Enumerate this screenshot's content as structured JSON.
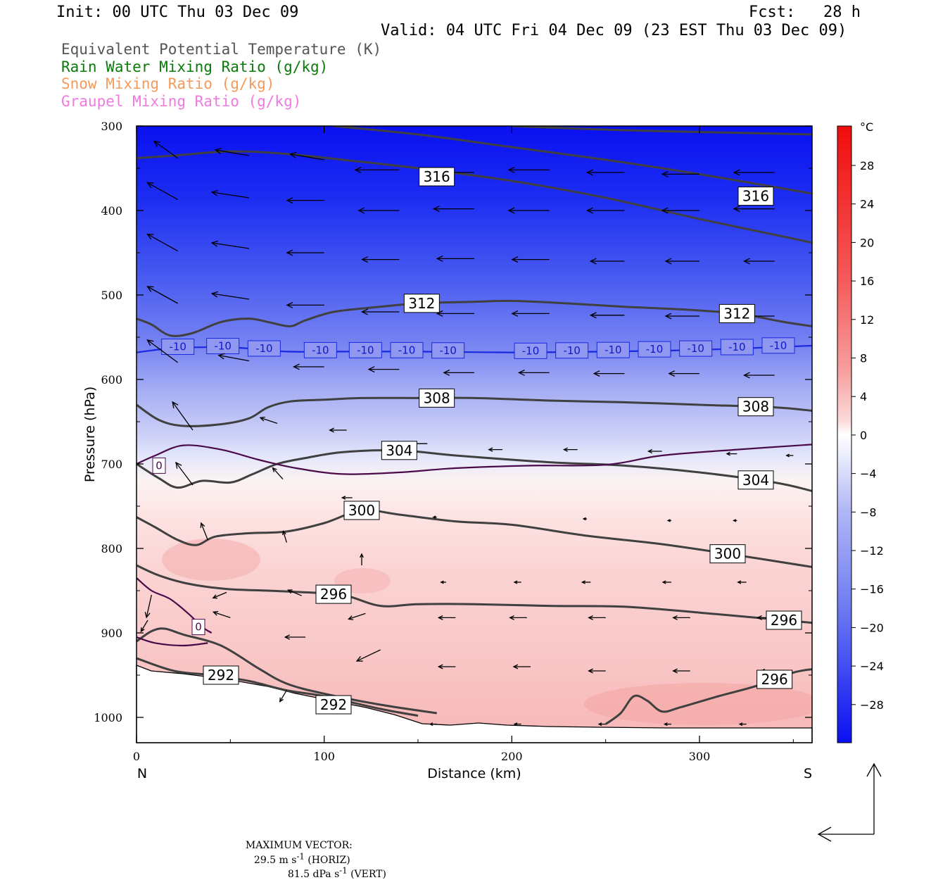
{
  "header": {
    "init": "Init: 00 UTC Thu 03 Dec 09",
    "fcst": "Fcst:   28 h",
    "valid": "Valid: 04 UTC Fri 04 Dec 09 (23 EST Thu 03 Dec 09)"
  },
  "legend": {
    "items": [
      {
        "label": "Equivalent Potential Temperature (K)",
        "color": "#555555"
      },
      {
        "label": "Rain Water Mixing Ratio (g/kg)",
        "color": "#0a7a0a"
      },
      {
        "label": "Snow Mixing Ratio (g/kg)",
        "color": "#f39a5c"
      },
      {
        "label": "Graupel Mixing Ratio (g/kg)",
        "color": "#f07ae0"
      }
    ]
  },
  "footer": {
    "max_vector_label": "MAXIMUM VECTOR:",
    "horiz_value": "29.5 m s",
    "horiz_exp": "-1",
    "horiz_tag": "(HORIZ)",
    "vert_value": "81.5 dPa s",
    "vert_exp": "-1",
    "vert_tag": "(VERT)"
  },
  "chart_data": {
    "type": "heatmap",
    "description_fields": [
      "temperature shading (°C)",
      "theta-e contours (K)",
      "isotherms 0 and -10 °C",
      "circulation vectors"
    ],
    "xlabel": "Distance (km)",
    "ylabel": "Pressure (hPa)",
    "x_range": [
      0,
      360
    ],
    "y_range": [
      1030,
      300
    ],
    "x_ticks": [
      0,
      100,
      200,
      300
    ],
    "y_ticks": [
      300,
      400,
      500,
      600,
      700,
      800,
      900,
      1000
    ],
    "x_end_labels": {
      "left": "N",
      "right": "S"
    },
    "colorbar": {
      "unit": "°C",
      "ticks": [
        "28",
        "24",
        "20",
        "16",
        "12",
        "8",
        "4",
        "0",
        "−4",
        "−8",
        "−12",
        "−16",
        "−20",
        "−24",
        "−28"
      ]
    },
    "theta_e_contours": [
      {
        "label": "316",
        "points": [
          [
            0,
            338
          ],
          [
            20,
            335
          ],
          [
            50,
            330
          ],
          [
            80,
            333
          ],
          [
            110,
            340
          ],
          [
            150,
            350
          ],
          [
            200,
            365
          ],
          [
            250,
            385
          ],
          [
            300,
            410
          ],
          [
            360,
            438
          ]
        ]
      },
      {
        "label": "316",
        "points": [
          [
            105,
            300
          ],
          [
            150,
            310
          ],
          [
            200,
            325
          ],
          [
            250,
            340
          ],
          [
            300,
            357
          ],
          [
            360,
            380
          ]
        ]
      },
      {
        "label": "316",
        "points": [
          [
            200,
            300
          ],
          [
            260,
            305
          ],
          [
            320,
            308
          ],
          [
            360,
            310
          ]
        ]
      },
      {
        "label": "312",
        "points": [
          [
            0,
            528
          ],
          [
            8,
            535
          ],
          [
            18,
            548
          ],
          [
            30,
            545
          ],
          [
            45,
            532
          ],
          [
            60,
            528
          ],
          [
            72,
            533
          ],
          [
            82,
            537
          ],
          [
            90,
            530
          ],
          [
            105,
            520
          ],
          [
            125,
            515
          ],
          [
            150,
            510
          ],
          [
            180,
            508
          ],
          [
            200,
            507
          ],
          [
            230,
            510
          ],
          [
            260,
            514
          ],
          [
            290,
            517
          ],
          [
            320,
            522
          ],
          [
            345,
            532
          ],
          [
            360,
            537
          ]
        ]
      },
      {
        "label": "308",
        "points": [
          [
            0,
            630
          ],
          [
            12,
            648
          ],
          [
            25,
            655
          ],
          [
            45,
            653
          ],
          [
            60,
            646
          ],
          [
            70,
            633
          ],
          [
            82,
            626
          ],
          [
            100,
            624
          ],
          [
            120,
            622
          ],
          [
            150,
            622
          ],
          [
            180,
            622
          ],
          [
            220,
            625
          ],
          [
            260,
            627
          ],
          [
            300,
            630
          ],
          [
            340,
            633
          ],
          [
            360,
            637
          ]
        ]
      },
      {
        "label": "304",
        "points": [
          [
            0,
            700
          ],
          [
            12,
            717
          ],
          [
            22,
            728
          ],
          [
            35,
            720
          ],
          [
            50,
            722
          ],
          [
            62,
            712
          ],
          [
            75,
            700
          ],
          [
            90,
            693
          ],
          [
            110,
            686
          ],
          [
            140,
            684
          ],
          [
            170,
            690
          ],
          [
            220,
            698
          ],
          [
            260,
            702
          ],
          [
            300,
            710
          ],
          [
            340,
            722
          ],
          [
            360,
            732
          ]
        ]
      },
      {
        "label": "300",
        "points": [
          [
            0,
            763
          ],
          [
            10,
            775
          ],
          [
            22,
            790
          ],
          [
            32,
            796
          ],
          [
            42,
            786
          ],
          [
            60,
            782
          ],
          [
            80,
            780
          ],
          [
            100,
            770
          ],
          [
            120,
            755
          ],
          [
            140,
            760
          ],
          [
            170,
            768
          ],
          [
            200,
            772
          ],
          [
            240,
            785
          ],
          [
            280,
            795
          ],
          [
            320,
            808
          ],
          [
            360,
            822
          ]
        ]
      },
      {
        "label": "296",
        "points": [
          [
            0,
            820
          ],
          [
            12,
            832
          ],
          [
            28,
            842
          ],
          [
            48,
            848
          ],
          [
            70,
            850
          ],
          [
            90,
            852
          ],
          [
            110,
            855
          ],
          [
            130,
            868
          ],
          [
            150,
            866
          ],
          [
            180,
            866
          ],
          [
            220,
            868
          ],
          [
            260,
            869
          ],
          [
            300,
            876
          ],
          [
            340,
            884
          ],
          [
            360,
            888
          ]
        ]
      },
      {
        "label": "296",
        "points": [
          [
            250,
            1008
          ],
          [
            258,
            995
          ],
          [
            265,
            975
          ],
          [
            272,
            980
          ],
          [
            280,
            993
          ],
          [
            290,
            988
          ],
          [
            310,
            975
          ],
          [
            330,
            963
          ],
          [
            350,
            947
          ],
          [
            360,
            943
          ]
        ]
      },
      {
        "label": "292",
        "points": [
          [
            0,
            910
          ],
          [
            8,
            898
          ],
          [
            15,
            895
          ],
          [
            25,
            902
          ],
          [
            45,
            915
          ],
          [
            65,
            942
          ],
          [
            80,
            960
          ],
          [
            100,
            972
          ],
          [
            130,
            985
          ],
          [
            160,
            995
          ]
        ]
      },
      {
        "label": "292",
        "points": [
          [
            0,
            930
          ],
          [
            20,
            945
          ],
          [
            40,
            950
          ],
          [
            60,
            957
          ],
          [
            80,
            968
          ],
          [
            100,
            975
          ],
          [
            130,
            990
          ],
          [
            150,
            998
          ]
        ]
      }
    ],
    "isotherm_minus10": {
      "label": "-10",
      "points": [
        [
          0,
          568
        ],
        [
          20,
          563
        ],
        [
          50,
          562
        ],
        [
          80,
          567
        ],
        [
          110,
          567
        ],
        [
          150,
          567
        ],
        [
          200,
          568
        ],
        [
          250,
          567
        ],
        [
          300,
          565
        ],
        [
          360,
          560
        ]
      ],
      "label_x_km": [
        22,
        46,
        68,
        98,
        122,
        144,
        166,
        210,
        232,
        254,
        276,
        298,
        320,
        342
      ]
    },
    "isotherm_zero": [
      {
        "label": "0",
        "points": [
          [
            0,
            700
          ],
          [
            10,
            690
          ],
          [
            25,
            678
          ],
          [
            45,
            683
          ],
          [
            65,
            695
          ],
          [
            85,
            705
          ],
          [
            110,
            712
          ],
          [
            140,
            710
          ],
          [
            170,
            705
          ],
          [
            210,
            702
          ],
          [
            250,
            701
          ],
          [
            280,
            690
          ],
          [
            320,
            683
          ],
          [
            360,
            677
          ]
        ],
        "label_at": [
          12,
          702
        ]
      },
      {
        "label": "0",
        "points": [
          [
            0,
            835
          ],
          [
            8,
            850
          ],
          [
            18,
            860
          ],
          [
            28,
            878
          ],
          [
            35,
            893
          ],
          [
            40,
            900
          ]
        ],
        "label_at": [
          33,
          893
        ]
      },
      {
        "label": "0",
        "points": [
          [
            0,
            905
          ],
          [
            10,
            912
          ],
          [
            25,
            915
          ],
          [
            38,
            912
          ]
        ]
      }
    ],
    "vectors": [
      [
        22,
        338,
        14,
        -3
      ],
      [
        60,
        335,
        20,
        -1
      ],
      [
        100,
        340,
        20,
        -1
      ],
      [
        140,
        352,
        26,
        0
      ],
      [
        180,
        355,
        24,
        0
      ],
      [
        220,
        352,
        24,
        0
      ],
      [
        260,
        355,
        22,
        0
      ],
      [
        300,
        357,
        22,
        0
      ],
      [
        340,
        355,
        24,
        0
      ],
      [
        22,
        387,
        18,
        -3
      ],
      [
        60,
        385,
        22,
        -1
      ],
      [
        100,
        388,
        22,
        0
      ],
      [
        140,
        400,
        24,
        0
      ],
      [
        180,
        398,
        24,
        0
      ],
      [
        220,
        400,
        24,
        0
      ],
      [
        260,
        400,
        22,
        0
      ],
      [
        300,
        400,
        22,
        0
      ],
      [
        340,
        398,
        24,
        0
      ],
      [
        22,
        448,
        18,
        -3
      ],
      [
        60,
        445,
        22,
        -1
      ],
      [
        100,
        450,
        22,
        0
      ],
      [
        140,
        458,
        22,
        0
      ],
      [
        180,
        457,
        22,
        0
      ],
      [
        220,
        458,
        22,
        0
      ],
      [
        260,
        460,
        20,
        0
      ],
      [
        300,
        460,
        20,
        0
      ],
      [
        340,
        460,
        18,
        0
      ],
      [
        22,
        510,
        18,
        -3
      ],
      [
        60,
        505,
        22,
        -1
      ],
      [
        100,
        512,
        22,
        0
      ],
      [
        140,
        520,
        22,
        0
      ],
      [
        180,
        522,
        22,
        0
      ],
      [
        220,
        522,
        22,
        0
      ],
      [
        260,
        524,
        20,
        0
      ],
      [
        300,
        525,
        20,
        0
      ],
      [
        340,
        525,
        20,
        0
      ],
      [
        22,
        580,
        18,
        -4
      ],
      [
        60,
        578,
        18,
        -1
      ],
      [
        100,
        585,
        18,
        0
      ],
      [
        140,
        588,
        18,
        0
      ],
      [
        180,
        592,
        18,
        0
      ],
      [
        220,
        592,
        18,
        0
      ],
      [
        260,
        593,
        18,
        0
      ],
      [
        300,
        593,
        18,
        0
      ],
      [
        340,
        595,
        18,
        0
      ],
      [
        30,
        660,
        12,
        -5
      ],
      [
        75,
        652,
        10,
        -1
      ],
      [
        112,
        660,
        10,
        0
      ],
      [
        155,
        676,
        10,
        0
      ],
      [
        195,
        683,
        8,
        0
      ],
      [
        235,
        683,
        8,
        0
      ],
      [
        280,
        685,
        8,
        0
      ],
      [
        320,
        688,
        6,
        0
      ],
      [
        350,
        690,
        4,
        0
      ],
      [
        30,
        725,
        10,
        -4
      ],
      [
        78,
        718,
        6,
        -2
      ],
      [
        115,
        740,
        6,
        0
      ],
      [
        160,
        763,
        2,
        0
      ],
      [
        240,
        765,
        2,
        0
      ],
      [
        285,
        767,
        2,
        0
      ],
      [
        320,
        767,
        2,
        0
      ],
      [
        38,
        790,
        4,
        -3
      ],
      [
        80,
        793,
        2,
        -2
      ],
      [
        120,
        820,
        0,
        -2
      ],
      [
        165,
        840,
        3,
        0
      ],
      [
        205,
        840,
        4,
        0
      ],
      [
        242,
        840,
        5,
        0
      ],
      [
        285,
        840,
        5,
        0
      ],
      [
        325,
        840,
        5,
        0
      ],
      [
        8,
        855,
        3,
        4
      ],
      [
        48,
        852,
        8,
        1
      ],
      [
        88,
        856,
        8,
        -1
      ],
      [
        122,
        877,
        10,
        1
      ],
      [
        170,
        882,
        10,
        0
      ],
      [
        208,
        882,
        10,
        0
      ],
      [
        250,
        882,
        10,
        0
      ],
      [
        295,
        882,
        10,
        0
      ],
      [
        340,
        882,
        10,
        0
      ],
      [
        6,
        885,
        4,
        2
      ],
      [
        50,
        882,
        10,
        -1
      ],
      [
        90,
        905,
        12,
        0
      ],
      [
        130,
        920,
        14,
        2
      ],
      [
        170,
        940,
        10,
        0
      ],
      [
        210,
        940,
        10,
        0
      ],
      [
        250,
        945,
        10,
        0
      ],
      [
        295,
        945,
        10,
        0
      ],
      [
        340,
        945,
        8,
        0
      ],
      [
        80,
        968,
        4,
        2
      ],
      [
        160,
        1008,
        4,
        0
      ],
      [
        205,
        1008,
        4,
        0
      ],
      [
        250,
        1008,
        4,
        0
      ],
      [
        285,
        1008,
        4,
        0
      ],
      [
        325,
        1008,
        4,
        0
      ]
    ]
  }
}
